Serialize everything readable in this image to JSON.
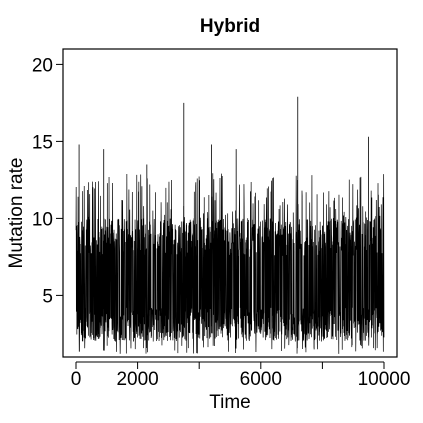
{
  "chart_data": {
    "type": "line",
    "title": "Hybrid",
    "xlabel": "Time",
    "ylabel": "Mutation rate",
    "xlim": [
      0,
      10000
    ],
    "ylim": [
      1,
      21
    ],
    "x_ticks": [
      {
        "value": 0,
        "label": "0"
      },
      {
        "value": 2000,
        "label": "2000"
      },
      {
        "value": 4000,
        "label": ""
      },
      {
        "value": 6000,
        "label": "6000"
      },
      {
        "value": 8000,
        "label": ""
      },
      {
        "value": 10000,
        "label": "10000"
      }
    ],
    "y_ticks": [
      {
        "value": 5,
        "label": "5"
      },
      {
        "value": 10,
        "label": "10"
      },
      {
        "value": 15,
        "label": "15"
      },
      {
        "value": 20,
        "label": "20"
      }
    ],
    "series": [
      {
        "color": "#000000",
        "summary": {
          "n_points": 10000,
          "typical_low": 2,
          "typical_high": 10,
          "min": 1.2,
          "max": 17.9
        },
        "peaks": [
          {
            "x": 100,
            "y": 14.8
          },
          {
            "x": 900,
            "y": 14.5
          },
          {
            "x": 2300,
            "y": 13.5
          },
          {
            "x": 3500,
            "y": 17.5
          },
          {
            "x": 4400,
            "y": 14.8
          },
          {
            "x": 5200,
            "y": 14.5
          },
          {
            "x": 7200,
            "y": 17.9
          },
          {
            "x": 9500,
            "y": 15.3
          }
        ]
      }
    ],
    "grid": false
  }
}
